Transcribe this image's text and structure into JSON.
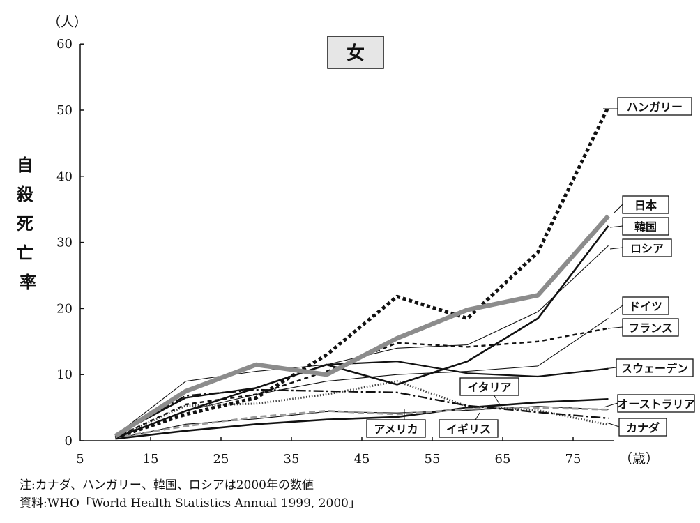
{
  "colors": {
    "ink": "#111111",
    "japan_gray": "#8c8c8c",
    "box_fill": "#e6e6e6",
    "gray_dash": "#9a9a9a"
  },
  "chart_data": {
    "type": "line",
    "title": "女",
    "ylabel": "自殺死亡率",
    "y_unit": "（人）",
    "x_unit": "（歳）",
    "xlim": [
      5,
      85
    ],
    "ylim": [
      0,
      60
    ],
    "x_ticks": [
      "5",
      "15",
      "25",
      "35",
      "45",
      "55",
      "65",
      "75"
    ],
    "y_ticks": [
      "0",
      "10",
      "20",
      "30",
      "40",
      "50",
      "60"
    ],
    "x": [
      10,
      20,
      30,
      40,
      50,
      60,
      70,
      80
    ],
    "grid": false,
    "legend": "inline labels at line ends",
    "series": [
      {
        "name": "ハンガリー",
        "values": [
          0.5,
          4.0,
          6.5,
          13.0,
          21.8,
          18.5,
          28.5,
          50.5
        ],
        "style": "dotted-heavy"
      },
      {
        "name": "日本",
        "values": [
          0.7,
          7.5,
          11.5,
          10.0,
          15.5,
          19.8,
          22.0,
          34.0
        ],
        "style": "gray-thick"
      },
      {
        "name": "韓国",
        "values": [
          0.4,
          4.5,
          8.0,
          11.5,
          8.5,
          12.0,
          18.5,
          32.5
        ],
        "style": "solid-bold"
      },
      {
        "name": "ロシア",
        "values": [
          0.8,
          9.0,
          10.5,
          11.5,
          14.0,
          14.5,
          19.5,
          29.5
        ],
        "style": "solid-thin"
      },
      {
        "name": "ドイツ",
        "values": [
          0.5,
          4.5,
          7.0,
          9.0,
          10.0,
          10.5,
          11.3,
          18.5
        ],
        "style": "solid-thin"
      },
      {
        "name": "フランス",
        "values": [
          0.5,
          5.5,
          7.0,
          10.5,
          14.8,
          14.2,
          15.0,
          17.0
        ],
        "style": "dashed"
      },
      {
        "name": "スウェーデン",
        "values": [
          0.8,
          6.5,
          8.0,
          11.5,
          12.0,
          10.2,
          9.7,
          10.9
        ],
        "style": "solid-medium"
      },
      {
        "name": "イタリア",
        "values": [
          0.3,
          2.5,
          3.3,
          4.4,
          4.2,
          4.6,
          5.2,
          4.7
        ],
        "style": "solid-thin"
      },
      {
        "name": "オーストラリア",
        "values": [
          0.7,
          6.8,
          7.7,
          7.5,
          7.3,
          5.3,
          4.3,
          3.4
        ],
        "style": "dash-dot"
      },
      {
        "name": "カナダ",
        "values": [
          0.5,
          5.3,
          5.6,
          7.0,
          9.0,
          5.2,
          4.6,
          2.4
        ],
        "style": "dotted-thin"
      },
      {
        "name": "アメリカ",
        "values": [
          0.5,
          2.2,
          3.6,
          4.5,
          4.0,
          4.8,
          5.0,
          4.7
        ],
        "style": "gray-dashed"
      },
      {
        "name": "イギリス",
        "values": [
          0.3,
          1.5,
          2.5,
          3.2,
          3.6,
          5.0,
          5.8,
          6.3
        ],
        "style": "solid-bold"
      }
    ]
  },
  "notes": [
    "注:カナダ、ハンガリー、韓国、ロシアは2000年の数値",
    "資料:WHO「World Health Statistics Annual 1999, 2000」"
  ]
}
